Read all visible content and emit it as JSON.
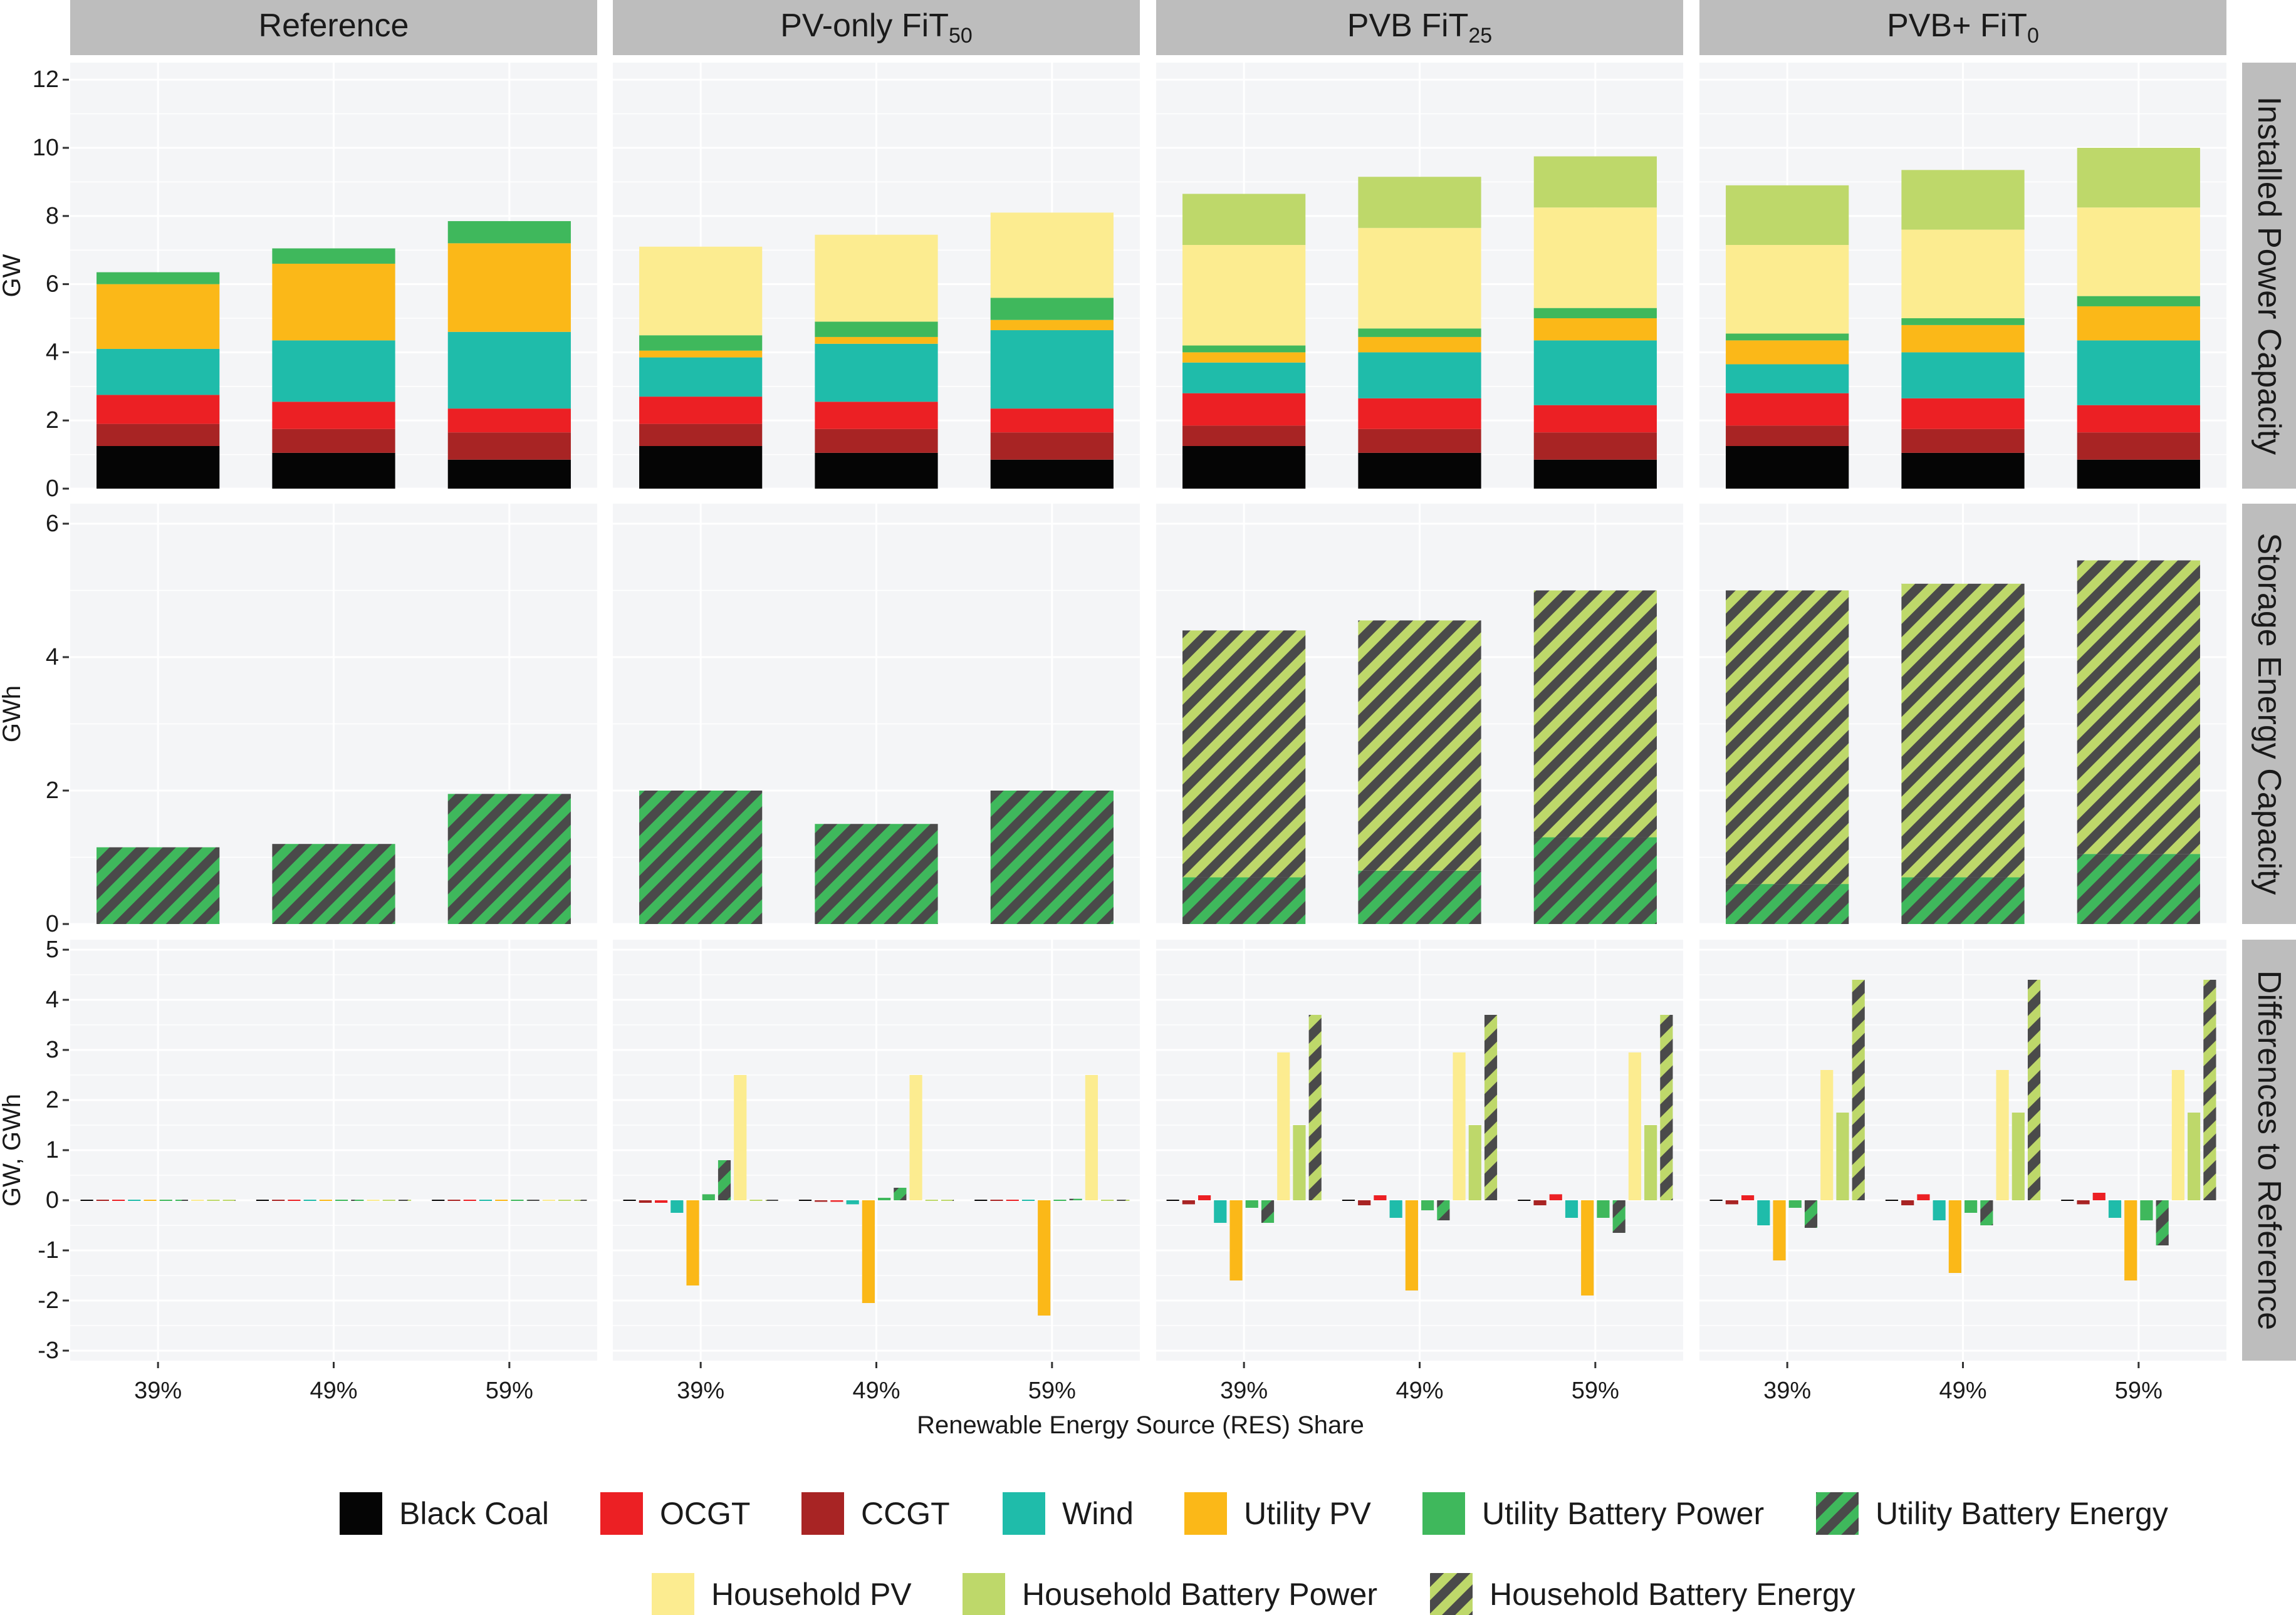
{
  "chart_data": {
    "type": "bar",
    "stacked": true,
    "x_axis_title": "Renewable Energy Source (RES) Share",
    "facets": [
      {
        "id": "ref",
        "title": "Reference",
        "subscript": ""
      },
      {
        "id": "pv",
        "title": "PV-only FiT",
        "subscript": "50"
      },
      {
        "id": "pvb",
        "title": "PVB FiT",
        "subscript": "25"
      },
      {
        "id": "pvbp",
        "title": "PVB+ FiT",
        "subscript": "0"
      }
    ],
    "categories": [
      "39%",
      "49%",
      "59%"
    ],
    "rows": [
      {
        "id": "installed",
        "strip": "Installed Power Capacity",
        "ylabel": "GW",
        "ylim": [
          0,
          12.5
        ],
        "ticks": [
          0,
          2,
          4,
          6,
          8,
          10,
          12
        ]
      },
      {
        "id": "storage",
        "strip": "Storage Energy Capacity",
        "ylabel": "GWh",
        "ylim": [
          0,
          6.3
        ],
        "ticks": [
          0,
          2,
          4,
          6
        ]
      },
      {
        "id": "diff",
        "strip": "Differences to Reference",
        "ylabel": "GW, GWh",
        "ylim": [
          -3.2,
          5.2
        ],
        "ticks": [
          -3,
          -2,
          -1,
          0,
          1,
          2,
          3,
          4,
          5
        ]
      }
    ],
    "series": [
      {
        "key": "coal",
        "name": "Black Coal",
        "color": "#050505",
        "pattern": ""
      },
      {
        "key": "ocgt",
        "name": "OCGT",
        "color": "#ec2024",
        "pattern": ""
      },
      {
        "key": "ccgt",
        "name": "CCGT",
        "color": "#a82424",
        "pattern": ""
      },
      {
        "key": "wind",
        "name": "Wind",
        "color": "#1fbcaa",
        "pattern": ""
      },
      {
        "key": "upv",
        "name": "Utility PV",
        "color": "#fbb818",
        "pattern": ""
      },
      {
        "key": "ubp",
        "name": "Utility Battery Power",
        "color": "#3fb85c",
        "pattern": ""
      },
      {
        "key": "ube",
        "name": "Utility Battery Energy",
        "color": "#3fb85c",
        "pattern": "stripe"
      },
      {
        "key": "hpv",
        "name": "Household PV",
        "color": "#fcec90",
        "pattern": ""
      },
      {
        "key": "hbp",
        "name": "Household Battery Power",
        "color": "#bed86a",
        "pattern": ""
      },
      {
        "key": "hbe",
        "name": "Household Battery Energy",
        "color": "#bed86a",
        "pattern": "stripe"
      }
    ],
    "installed": {
      "ref": [
        {
          "coal": 1.25,
          "ccgt": 0.65,
          "ocgt": 0.85,
          "wind": 1.35,
          "upv": 1.9,
          "ubp": 0.35
        },
        {
          "coal": 1.05,
          "ccgt": 0.7,
          "ocgt": 0.8,
          "wind": 1.8,
          "upv": 2.25,
          "ubp": 0.45
        },
        {
          "coal": 0.85,
          "ccgt": 0.8,
          "ocgt": 0.7,
          "wind": 2.25,
          "upv": 2.6,
          "ubp": 0.65
        }
      ],
      "pv": [
        {
          "coal": 1.25,
          "ccgt": 0.65,
          "ocgt": 0.8,
          "wind": 1.15,
          "upv": 0.2,
          "ubp": 0.45,
          "hpv": 2.6
        },
        {
          "coal": 1.05,
          "ccgt": 0.7,
          "ocgt": 0.8,
          "wind": 1.7,
          "upv": 0.2,
          "ubp": 0.45,
          "hpv": 2.55
        },
        {
          "coal": 0.85,
          "ccgt": 0.8,
          "ocgt": 0.7,
          "wind": 2.3,
          "upv": 0.3,
          "ubp": 0.65,
          "hpv": 2.5
        }
      ],
      "pvb": [
        {
          "coal": 1.25,
          "ccgt": 0.6,
          "ocgt": 0.95,
          "wind": 0.9,
          "upv": 0.3,
          "ubp": 0.2,
          "hpv": 2.95,
          "hbp": 1.5
        },
        {
          "coal": 1.05,
          "ccgt": 0.7,
          "ocgt": 0.9,
          "wind": 1.35,
          "upv": 0.45,
          "ubp": 0.25,
          "hpv": 2.95,
          "hbp": 1.5
        },
        {
          "coal": 0.85,
          "ccgt": 0.8,
          "ocgt": 0.8,
          "wind": 1.9,
          "upv": 0.65,
          "ubp": 0.3,
          "hpv": 2.95,
          "hbp": 1.5
        }
      ],
      "pvbp": [
        {
          "coal": 1.25,
          "ccgt": 0.6,
          "ocgt": 0.95,
          "wind": 0.85,
          "upv": 0.7,
          "ubp": 0.2,
          "hpv": 2.6,
          "hbp": 1.75
        },
        {
          "coal": 1.05,
          "ccgt": 0.7,
          "ocgt": 0.9,
          "wind": 1.35,
          "upv": 0.8,
          "ubp": 0.2,
          "hpv": 2.6,
          "hbp": 1.75
        },
        {
          "coal": 0.85,
          "ccgt": 0.8,
          "ocgt": 0.8,
          "wind": 1.9,
          "upv": 1.0,
          "ubp": 0.3,
          "hpv": 2.6,
          "hbp": 1.75
        }
      ]
    },
    "storage": {
      "ref": [
        {
          "ube": 1.15
        },
        {
          "ube": 1.2
        },
        {
          "ube": 1.95
        }
      ],
      "pv": [
        {
          "ube": 2.0
        },
        {
          "ube": 1.5
        },
        {
          "ube": 2.0
        }
      ],
      "pvb": [
        {
          "ube": 0.7,
          "hbe": 3.7
        },
        {
          "ube": 0.8,
          "hbe": 3.75
        },
        {
          "ube": 1.3,
          "hbe": 3.7
        }
      ],
      "pvbp": [
        {
          "ube": 0.6,
          "hbe": 4.4
        },
        {
          "ube": 0.7,
          "hbe": 4.4
        },
        {
          "ube": 1.05,
          "hbe": 4.4
        }
      ]
    },
    "diff_order": [
      "coal",
      "ccgt",
      "ocgt",
      "wind",
      "upv",
      "ubp",
      "ube",
      "hpv",
      "hbp",
      "hbe"
    ],
    "diff": {
      "ref": [
        {
          "coal": 0,
          "ccgt": 0,
          "ocgt": 0,
          "wind": 0,
          "upv": 0,
          "ubp": 0,
          "ube": 0,
          "hpv": 0,
          "hbp": 0,
          "hbe": 0
        },
        {
          "coal": 0,
          "ccgt": 0,
          "ocgt": 0,
          "wind": 0,
          "upv": 0,
          "ubp": 0,
          "ube": 0,
          "hpv": 0,
          "hbp": 0,
          "hbe": 0
        },
        {
          "coal": 0,
          "ccgt": 0,
          "ocgt": 0,
          "wind": 0,
          "upv": 0,
          "ubp": 0,
          "ube": 0,
          "hpv": 0,
          "hbp": 0,
          "hbe": 0
        }
      ],
      "pv": [
        {
          "coal": 0.02,
          "ccgt": -0.05,
          "ocgt": -0.05,
          "wind": -0.25,
          "upv": -1.7,
          "ubp": 0.12,
          "ube": 0.8,
          "hpv": 2.5,
          "hbp": 0,
          "hbe": 0
        },
        {
          "coal": 0.02,
          "ccgt": -0.03,
          "ocgt": -0.03,
          "wind": -0.08,
          "upv": -2.05,
          "ubp": 0.05,
          "ube": 0.25,
          "hpv": 2.5,
          "hbp": 0,
          "hbe": 0
        },
        {
          "coal": 0.01,
          "ccgt": -0.01,
          "ocgt": -0.01,
          "wind": 0.02,
          "upv": -2.3,
          "ubp": 0.02,
          "ube": 0.03,
          "hpv": 2.5,
          "hbp": 0,
          "hbe": 0
        }
      ],
      "pvb": [
        {
          "coal": 0.02,
          "ccgt": -0.08,
          "ocgt": 0.1,
          "wind": -0.45,
          "upv": -1.6,
          "ubp": -0.15,
          "ube": -0.45,
          "hpv": 2.95,
          "hbp": 1.5,
          "hbe": 3.7
        },
        {
          "coal": 0.02,
          "ccgt": -0.1,
          "ocgt": 0.1,
          "wind": -0.35,
          "upv": -1.8,
          "ubp": -0.2,
          "ube": -0.4,
          "hpv": 2.95,
          "hbp": 1.5,
          "hbe": 3.7
        },
        {
          "coal": 0.02,
          "ccgt": -0.1,
          "ocgt": 0.12,
          "wind": -0.35,
          "upv": -1.9,
          "ubp": -0.35,
          "ube": -0.65,
          "hpv": 2.95,
          "hbp": 1.5,
          "hbe": 3.7
        }
      ],
      "pvbp": [
        {
          "coal": 0.02,
          "ccgt": -0.08,
          "ocgt": 0.1,
          "wind": -0.5,
          "upv": -1.2,
          "ubp": -0.15,
          "ube": -0.55,
          "hpv": 2.6,
          "hbp": 1.75,
          "hbe": 4.4
        },
        {
          "coal": 0.02,
          "ccgt": -0.1,
          "ocgt": 0.12,
          "wind": -0.4,
          "upv": -1.45,
          "ubp": -0.25,
          "ube": -0.5,
          "hpv": 2.6,
          "hbp": 1.75,
          "hbe": 4.4
        },
        {
          "coal": 0.02,
          "ccgt": -0.08,
          "ocgt": 0.15,
          "wind": -0.35,
          "upv": -1.6,
          "ubp": -0.4,
          "ube": -0.9,
          "hpv": 2.6,
          "hbp": 1.75,
          "hbe": 4.4
        }
      ]
    }
  }
}
